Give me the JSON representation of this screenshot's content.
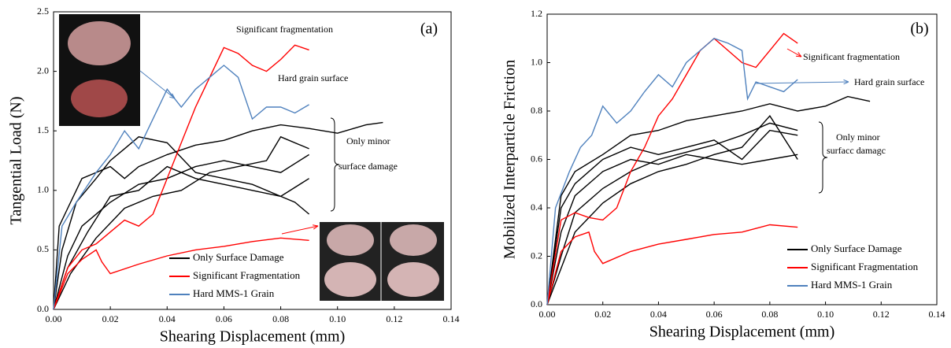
{
  "chart_data": [
    {
      "type": "line",
      "xlabel": "Shearing Displacement (mm)",
      "ylabel": "Tangential Load (N)",
      "panel_label": "(a)",
      "annotations": [
        "Significant fragmentation",
        "Hard grain surface",
        "Only minor",
        "surface damage"
      ],
      "xlim": [
        0,
        0.14
      ],
      "ylim": [
        0,
        2.5
      ],
      "xticks": [
        {
          "value": 0,
          "label": "0.00"
        },
        {
          "value": 0.02,
          "label": "0.02"
        },
        {
          "value": 0.04,
          "label": "0.04"
        },
        {
          "value": 0.06,
          "label": "0.06"
        },
        {
          "value": 0.08,
          "label": "0.08"
        },
        {
          "value": 0.1,
          "label": "0.10"
        },
        {
          "value": 0.12,
          "label": "0.12"
        },
        {
          "value": 0.14,
          "label": "0.14"
        }
      ],
      "yticks": [
        {
          "value": 0,
          "label": "0.0"
        },
        0.5,
        {
          "value": 1,
          "label": "1.0"
        },
        1.5,
        {
          "value": 2,
          "label": "2.0"
        },
        2.5
      ],
      "series": [
        {
          "name": "Only Surface Damage",
          "color": "#000000",
          "curves": [
            {
              "x": [
                0,
                0.002,
                0.005,
                0.01,
                0.015,
                0.02,
                0.025,
                0.03,
                0.035,
                0.04,
                0.05,
                0.06,
                0.07,
                0.08,
                0.09,
                0.1,
                0.11,
                0.116
              ],
              "values": [
                0,
                0.7,
                0.85,
                1.1,
                1.15,
                1.2,
                1.1,
                1.2,
                1.25,
                1.3,
                1.38,
                1.42,
                1.5,
                1.55,
                1.52,
                1.48,
                1.55,
                1.57
              ]
            },
            {
              "x": [
                0,
                0.003,
                0.008,
                0.015,
                0.02,
                0.025,
                0.03,
                0.04,
                0.05,
                0.06,
                0.07,
                0.08,
                0.085,
                0.09
              ],
              "values": [
                0,
                0.5,
                0.9,
                1.1,
                1.25,
                1.35,
                1.45,
                1.4,
                1.15,
                1.1,
                1.05,
                0.95,
                0.9,
                0.8
              ]
            },
            {
              "x": [
                0,
                0.005,
                0.01,
                0.02,
                0.03,
                0.04,
                0.05,
                0.06,
                0.07,
                0.08,
                0.09
              ],
              "values": [
                0,
                0.45,
                0.7,
                0.9,
                1.05,
                1.1,
                1.2,
                1.25,
                1.2,
                1.15,
                1.3
              ]
            },
            {
              "x": [
                0,
                0.005,
                0.012,
                0.02,
                0.03,
                0.04,
                0.05,
                0.06,
                0.07,
                0.08,
                0.09
              ],
              "values": [
                0,
                0.35,
                0.65,
                0.95,
                1.0,
                1.2,
                1.1,
                1.05,
                1.0,
                0.95,
                1.1
              ]
            },
            {
              "x": [
                0,
                0.006,
                0.015,
                0.025,
                0.035,
                0.045,
                0.055,
                0.065,
                0.075,
                0.08,
                0.09
              ],
              "values": [
                0,
                0.3,
                0.6,
                0.85,
                0.95,
                1.0,
                1.15,
                1.2,
                1.25,
                1.45,
                1.35
              ]
            }
          ]
        },
        {
          "name": "Significant Fragmentation",
          "color": "#ff0000",
          "curves": [
            {
              "x": [
                0,
                0.005,
                0.01,
                0.015,
                0.02,
                0.025,
                0.03,
                0.035,
                0.04,
                0.045,
                0.05,
                0.055,
                0.06,
                0.065,
                0.07,
                0.075,
                0.08,
                0.085,
                0.09
              ],
              "values": [
                0,
                0.35,
                0.5,
                0.55,
                0.65,
                0.75,
                0.7,
                0.8,
                1.1,
                1.4,
                1.7,
                1.95,
                2.2,
                2.15,
                2.05,
                2.0,
                2.1,
                2.22,
                2.18
              ]
            },
            {
              "x": [
                0,
                0.005,
                0.01,
                0.015,
                0.017,
                0.02,
                0.03,
                0.04,
                0.05,
                0.06,
                0.07,
                0.08,
                0.09
              ],
              "values": [
                0,
                0.3,
                0.42,
                0.5,
                0.4,
                0.3,
                0.38,
                0.45,
                0.5,
                0.53,
                0.57,
                0.6,
                0.58
              ]
            }
          ]
        },
        {
          "name": "Hard MMS-1 Grain",
          "color": "#4f81bd",
          "curves": [
            {
              "x": [
                0,
                0.003,
                0.008,
                0.015,
                0.02,
                0.025,
                0.03,
                0.035,
                0.04,
                0.045,
                0.05,
                0.055,
                0.06,
                0.065,
                0.07,
                0.075,
                0.08,
                0.085,
                0.09
              ],
              "values": [
                0,
                0.7,
                0.9,
                1.15,
                1.3,
                1.5,
                1.35,
                1.6,
                1.85,
                1.7,
                1.85,
                1.95,
                2.05,
                1.95,
                1.6,
                1.7,
                1.7,
                1.65,
                1.72
              ]
            }
          ]
        }
      ]
    },
    {
      "type": "line",
      "xlabel": "Shearing Displacement (mm)",
      "ylabel": "Mobilized Interparticle Friction",
      "panel_label": "(b)",
      "annotations": [
        "Significant fragmentation",
        "Hard grain surface",
        "Only minor",
        "surfacc damagc"
      ],
      "xlim": [
        0,
        0.14
      ],
      "ylim": [
        0,
        1.2
      ],
      "xticks": [
        {
          "value": 0,
          "label": "0.00"
        },
        {
          "value": 0.02,
          "label": "0.02"
        },
        {
          "value": 0.04,
          "label": "0.04"
        },
        {
          "value": 0.06,
          "label": "0.06"
        },
        {
          "value": 0.08,
          "label": "0.08"
        },
        {
          "value": 0.1,
          "label": "0.10"
        },
        {
          "value": 0.12,
          "label": "0.12"
        },
        {
          "value": 0.14,
          "label": "0.14"
        }
      ],
      "yticks": [
        {
          "value": 0,
          "label": "0.0"
        },
        0.2,
        0.4,
        0.6,
        0.8,
        {
          "value": 1,
          "label": "1.0"
        },
        1.2
      ],
      "series": [
        {
          "name": "Only Surface Damage",
          "color": "#000000",
          "curves": [
            {
              "x": [
                0,
                0.005,
                0.01,
                0.02,
                0.03,
                0.04,
                0.05,
                0.06,
                0.07,
                0.08,
                0.09,
                0.1,
                0.108,
                0.116
              ],
              "values": [
                0,
                0.45,
                0.55,
                0.62,
                0.7,
                0.72,
                0.76,
                0.78,
                0.8,
                0.83,
                0.8,
                0.82,
                0.86,
                0.84
              ]
            },
            {
              "x": [
                0,
                0.005,
                0.01,
                0.02,
                0.03,
                0.04,
                0.05,
                0.06,
                0.07,
                0.08,
                0.09
              ],
              "values": [
                0,
                0.4,
                0.5,
                0.6,
                0.65,
                0.62,
                0.65,
                0.68,
                0.6,
                0.72,
                0.7
              ]
            },
            {
              "x": [
                0,
                0.005,
                0.01,
                0.02,
                0.03,
                0.04,
                0.05,
                0.06,
                0.07,
                0.08,
                0.09
              ],
              "values": [
                0,
                0.3,
                0.45,
                0.55,
                0.6,
                0.58,
                0.62,
                0.6,
                0.58,
                0.6,
                0.62
              ]
            },
            {
              "x": [
                0,
                0.005,
                0.01,
                0.02,
                0.03,
                0.04,
                0.05,
                0.06,
                0.07,
                0.08,
                0.09
              ],
              "values": [
                0,
                0.2,
                0.38,
                0.48,
                0.55,
                0.6,
                0.63,
                0.66,
                0.7,
                0.75,
                0.72
              ]
            },
            {
              "x": [
                0,
                0.005,
                0.01,
                0.02,
                0.03,
                0.04,
                0.05,
                0.06,
                0.07,
                0.08,
                0.09
              ],
              "values": [
                0,
                0.15,
                0.3,
                0.42,
                0.5,
                0.55,
                0.58,
                0.62,
                0.65,
                0.78,
                0.6
              ]
            }
          ]
        },
        {
          "name": "Significant Fragmentation",
          "color": "#ff0000",
          "curves": [
            {
              "x": [
                0,
                0.005,
                0.01,
                0.015,
                0.02,
                0.025,
                0.03,
                0.035,
                0.04,
                0.045,
                0.05,
                0.055,
                0.06,
                0.065,
                0.07,
                0.075,
                0.08,
                0.085,
                0.09
              ],
              "values": [
                0,
                0.35,
                0.38,
                0.36,
                0.35,
                0.4,
                0.55,
                0.65,
                0.78,
                0.85,
                0.95,
                1.05,
                1.1,
                1.05,
                1.0,
                0.98,
                1.05,
                1.12,
                1.08
              ]
            },
            {
              "x": [
                0,
                0.005,
                0.01,
                0.015,
                0.017,
                0.02,
                0.03,
                0.04,
                0.05,
                0.06,
                0.07,
                0.08,
                0.09
              ],
              "values": [
                0,
                0.22,
                0.28,
                0.3,
                0.22,
                0.17,
                0.22,
                0.25,
                0.27,
                0.29,
                0.3,
                0.33,
                0.32
              ]
            }
          ]
        },
        {
          "name": "Hard MMS-1 Grain",
          "color": "#4f81bd",
          "curves": [
            {
              "x": [
                0,
                0.003,
                0.008,
                0.012,
                0.016,
                0.02,
                0.025,
                0.03,
                0.035,
                0.04,
                0.045,
                0.05,
                0.055,
                0.06,
                0.065,
                0.07,
                0.072,
                0.075,
                0.08,
                0.085,
                0.09
              ],
              "values": [
                0,
                0.4,
                0.55,
                0.65,
                0.7,
                0.82,
                0.75,
                0.8,
                0.88,
                0.95,
                0.9,
                1.0,
                1.05,
                1.1,
                1.08,
                1.05,
                0.85,
                0.92,
                0.9,
                0.88,
                0.93
              ]
            }
          ]
        }
      ]
    }
  ]
}
